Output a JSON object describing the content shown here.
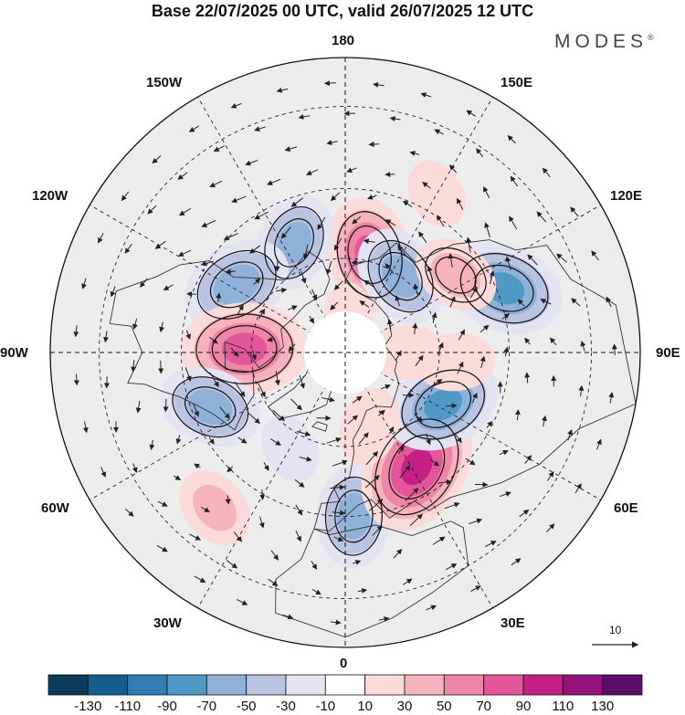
{
  "title": "Base 22/07/2025 00 UTC, valid 26/07/2025 12 UTC",
  "brand": "MODES",
  "brand_mark": "®",
  "longitude_labels": {
    "lon_0": "0",
    "lon_30e": "30E",
    "lon_60e": "60E",
    "lon_90e": "90E",
    "lon_120e": "120E",
    "lon_150e": "150E",
    "lon_180": "180",
    "lon_150w": "150W",
    "lon_120w": "120W",
    "lon_90w": "90W",
    "lon_60w": "60W",
    "lon_30w": "30W"
  },
  "reference_vector_label": "10",
  "colorbar": {
    "labels": [
      "-130",
      "-110",
      "-90",
      "-70",
      "-50",
      "-30",
      "-10",
      "10",
      "30",
      "50",
      "70",
      "90",
      "110",
      "130"
    ],
    "colors": [
      "#0c3b5e",
      "#145e8c",
      "#2f7db3",
      "#4f99c6",
      "#8fb0d8",
      "#b9c4e2",
      "#e4e3f1",
      "#ffffff",
      "#fbdada",
      "#f6b3bf",
      "#ee86a8",
      "#e3579a",
      "#c61f86",
      "#941179",
      "#5c0f6a"
    ]
  },
  "anomaly_centers": [
    {
      "lon_deg": 166,
      "lat_deg": 58,
      "value": 75,
      "name": "high-north-pacific"
    },
    {
      "lon_deg": -155,
      "lat_deg": 52,
      "value": -55,
      "name": "low-gulf-of-alaska-west"
    },
    {
      "lon_deg": 144,
      "lat_deg": 60,
      "value": -60,
      "name": "low-kamchatka"
    },
    {
      "lon_deg": -122,
      "lat_deg": 50,
      "value": -70,
      "name": "low-western-canada"
    },
    {
      "lon_deg": -92,
      "lat_deg": 58,
      "value": 90,
      "name": "high-hudson-bay"
    },
    {
      "lon_deg": -68,
      "lat_deg": 45,
      "value": -60,
      "name": "low-northeast-us"
    },
    {
      "lon_deg": -40,
      "lat_deg": 30,
      "value": 35,
      "name": "high-central-atlantic"
    },
    {
      "lon_deg": 3,
      "lat_deg": 40,
      "value": -60,
      "name": "low-western-mediterranean"
    },
    {
      "lon_deg": 32,
      "lat_deg": 48,
      "value": 100,
      "name": "high-eastern-europe"
    },
    {
      "lon_deg": 62,
      "lat_deg": 55,
      "value": -75,
      "name": "low-western-siberia"
    },
    {
      "lon_deg": 112,
      "lat_deg": 38,
      "value": -80,
      "name": "low-northeast-china"
    },
    {
      "lon_deg": 125,
      "lat_deg": 48,
      "value": 40,
      "name": "high-manchuria"
    },
    {
      "lon_deg": 85,
      "lat_deg": 55,
      "value": 30,
      "name": "high-central-siberia"
    },
    {
      "lon_deg": 90,
      "lat_deg": 70,
      "value": 25,
      "name": "high-taymyr"
    },
    {
      "lon_deg": 18,
      "lat_deg": 65,
      "value": 30,
      "name": "high-scandinavia"
    },
    {
      "lon_deg": 175,
      "lat_deg": 78,
      "value": 15,
      "name": "high-arctic-east"
    },
    {
      "lon_deg": -30,
      "lat_deg": 55,
      "value": -20,
      "name": "low-north-atlantic"
    },
    {
      "lon_deg": 150,
      "lat_deg": 35,
      "value": 20,
      "name": "high-japan"
    }
  ]
}
